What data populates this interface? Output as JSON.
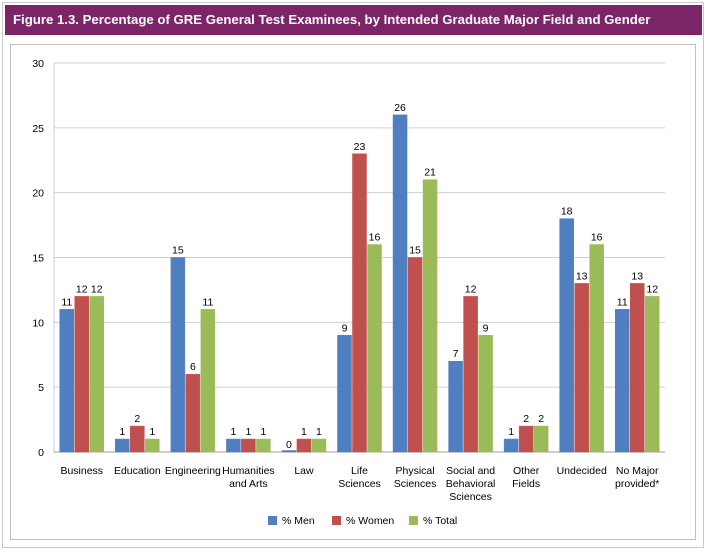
{
  "figure": {
    "title": "Figure 1.3. Percentage of GRE General Test Examinees, by Intended Graduate Major Field and Gender"
  },
  "colors": {
    "title_bar": "#7b2467",
    "men": "#4f7fc1",
    "women": "#c0504d",
    "total": "#9bbb59"
  },
  "chart_data": {
    "type": "bar",
    "title": "Figure 1.3. Percentage of GRE General Test Examinees, by Intended Graduate Major Field and Gender",
    "xlabel": "",
    "ylabel": "",
    "ylim": [
      0,
      30
    ],
    "yticks": [
      0,
      5,
      10,
      15,
      20,
      25,
      30
    ],
    "grid": true,
    "legend_position": "bottom",
    "categories": [
      [
        "Business"
      ],
      [
        "Education"
      ],
      [
        "Engineering"
      ],
      [
        "Humanities",
        "and Arts"
      ],
      [
        "Law"
      ],
      [
        "Life",
        "Sciences"
      ],
      [
        "Physical",
        "Sciences"
      ],
      [
        "Social and",
        "Behavioral",
        "Sciences"
      ],
      [
        "Other",
        "Fields"
      ],
      [
        "Undecided"
      ],
      [
        "No Major",
        "provided*"
      ]
    ],
    "series": [
      {
        "name": "% Men",
        "values": [
          11,
          1,
          15,
          1,
          0,
          9,
          26,
          7,
          1,
          18,
          11
        ]
      },
      {
        "name": "% Women",
        "values": [
          12,
          2,
          6,
          1,
          1,
          23,
          15,
          12,
          2,
          13,
          13
        ]
      },
      {
        "name": "% Total",
        "values": [
          12,
          1,
          11,
          1,
          1,
          16,
          21,
          9,
          2,
          16,
          12
        ]
      }
    ]
  }
}
